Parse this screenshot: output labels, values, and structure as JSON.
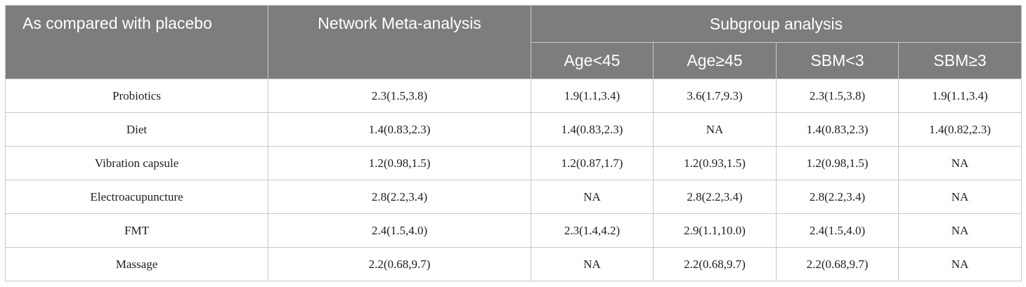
{
  "header": {
    "stub": "As compared with placebo",
    "nma": "Network Meta-analysis",
    "group": "Subgroup analysis",
    "subgroups": [
      "Age<45",
      "Age≥45",
      "SBM<3",
      "SBM≥3"
    ]
  },
  "rows": [
    [
      "Probiotics",
      "2.3(1.5,3.8)",
      "1.9(1.1,3.4)",
      "3.6(1.7,9.3)",
      "2.3(1.5,3.8)",
      "1.9(1.1,3.4)"
    ],
    [
      "Diet",
      "1.4(0.83,2.3)",
      "1.4(0.83,2.3)",
      "NA",
      "1.4(0.83,2.3)",
      "1.4(0.82,2.3)"
    ],
    [
      "Vibration capsule",
      "1.2(0.98,1.5)",
      "1.2(0.87,1.7)",
      "1.2(0.93,1.5)",
      "1.2(0.98,1.5)",
      "NA"
    ],
    [
      "Electroacupuncture",
      "2.8(2.2,3.4)",
      "NA",
      "2.8(2.2,3.4)",
      "2.8(2.2,3.4)",
      "NA"
    ],
    [
      "FMT",
      "2.4(1.5,4.0)",
      "2.3(1.4,4.2)",
      "2.9(1.1,10.0)",
      "2.4(1.5,4.0)",
      "NA"
    ],
    [
      "Massage",
      "2.2(0.68,9.7)",
      "NA",
      "2.2(0.68,9.7)",
      "2.2(0.68,9.7)",
      "NA"
    ]
  ]
}
